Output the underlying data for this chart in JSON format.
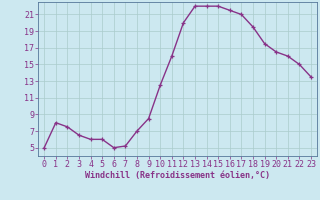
{
  "x": [
    0,
    1,
    2,
    3,
    4,
    5,
    6,
    7,
    8,
    9,
    10,
    11,
    12,
    13,
    14,
    15,
    16,
    17,
    18,
    19,
    20,
    21,
    22,
    23
  ],
  "y": [
    5,
    8,
    7.5,
    6.5,
    6,
    6,
    5,
    5.2,
    7,
    8.5,
    12.5,
    16,
    20,
    22,
    22,
    22,
    21.5,
    21,
    19.5,
    17.5,
    16.5,
    16,
    15,
    13.5
  ],
  "line_color": "#883388",
  "marker_color": "#883388",
  "bg_color": "#cce8f0",
  "grid_color": "#aacccc",
  "tick_color": "#883388",
  "xlabel": "Windchill (Refroidissement éolien,°C)",
  "xlim": [
    -0.5,
    23.5
  ],
  "ylim": [
    4,
    22.5
  ],
  "yticks": [
    5,
    7,
    9,
    11,
    13,
    15,
    17,
    19,
    21
  ],
  "xticks": [
    0,
    1,
    2,
    3,
    4,
    5,
    6,
    7,
    8,
    9,
    10,
    11,
    12,
    13,
    14,
    15,
    16,
    17,
    18,
    19,
    20,
    21,
    22,
    23
  ],
  "xlabel_fontsize": 6,
  "tick_fontsize": 6,
  "line_width": 1.0,
  "marker_size": 2.5
}
